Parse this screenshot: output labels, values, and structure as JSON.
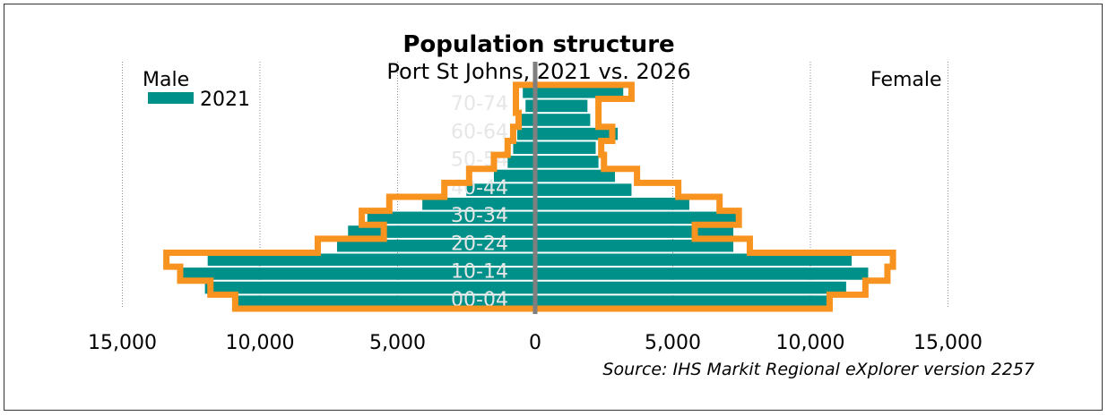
{
  "chart_data": {
    "type": "bar",
    "title": "Population structure",
    "subtitle": "Port St Johns, 2021 vs. 2026",
    "left_label": "Male",
    "right_label": "Female",
    "source": "Source: IHS Markit Regional eXplorer version 2257",
    "legend": [
      {
        "name": "2021",
        "color": "#00908A",
        "position": "top-left"
      }
    ],
    "age_groups": [
      "00-04",
      "05-09",
      "10-14",
      "15-19",
      "20-24",
      "25-29",
      "30-34",
      "35-39",
      "40-44",
      "45-49",
      "50-54",
      "55-59",
      "60-64",
      "65-69",
      "70-74",
      "75+"
    ],
    "age_labels_shown": [
      "00-04",
      "10-14",
      "20-24",
      "30-34",
      "40-44",
      "50-54",
      "60-64",
      "70-74"
    ],
    "series": [
      {
        "name": "2021",
        "style": "bars",
        "color": "#00908A",
        "male": [
          11000,
          12000,
          12900,
          11900,
          7200,
          6800,
          6100,
          4100,
          2500,
          1500,
          1000,
          800,
          650,
          500,
          350,
          450
        ],
        "female": [
          10700,
          11300,
          12100,
          11500,
          7200,
          7200,
          7300,
          5600,
          3500,
          2900,
          2300,
          2200,
          3000,
          2000,
          1900,
          3200
        ]
      },
      {
        "series_role": "projection outline",
        "style": "step-outline",
        "color": "#F7931E",
        "male": [
          10900,
          11800,
          12900,
          13400,
          7900,
          5500,
          6300,
          5300,
          3300,
          2400,
          1500,
          1000,
          800,
          600,
          700,
          700
        ],
        "female": [
          10700,
          12000,
          12800,
          13000,
          7800,
          5800,
          7400,
          6700,
          5200,
          3700,
          2500,
          2400,
          2800,
          2300,
          2300,
          3500
        ]
      }
    ],
    "x_ticks": [
      "15,000",
      "10,000",
      "5,000",
      "0",
      "5,000",
      "10,000",
      "15,000"
    ],
    "x_tick_values": [
      -15000,
      -10000,
      -5000,
      0,
      5000,
      10000,
      15000
    ],
    "xlim": [
      -15000,
      15000
    ],
    "grid": true
  }
}
